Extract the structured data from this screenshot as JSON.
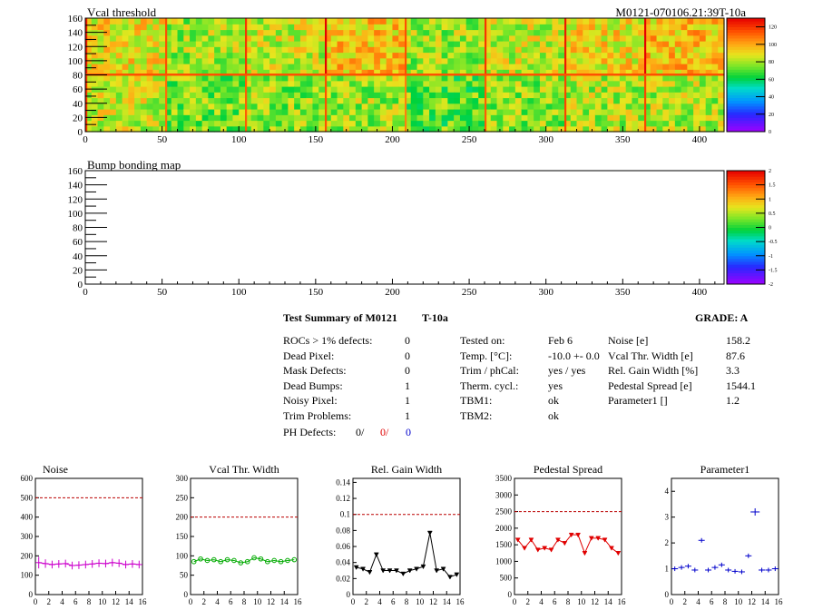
{
  "header": {
    "map_title": "Vcal threshold",
    "module_label": "M0121-070106.21:39T-10a",
    "bump_title": "Bump bonding map"
  },
  "axes": {
    "map_x_ticks": [
      "0",
      "50",
      "100",
      "150",
      "200",
      "250",
      "300",
      "350",
      "400"
    ],
    "map_y_ticks": [
      "0",
      "20",
      "40",
      "60",
      "80",
      "100",
      "120",
      "140",
      "160"
    ],
    "vcal_palette_ticks": [
      "0",
      "20",
      "40",
      "60",
      "80",
      "100",
      "120"
    ],
    "bump_palette_ticks": [
      "-2",
      "-1.5",
      "-1",
      "-0.5",
      "0",
      "0.5",
      "1",
      "1.5",
      "2"
    ],
    "small_x_ticks": [
      "0",
      "2",
      "4",
      "6",
      "8",
      "10",
      "12",
      "14",
      "16"
    ]
  },
  "summary": {
    "title": "Test Summary of M0121",
    "temp_tag": "T-10a",
    "grade": "GRADE:  A",
    "defects": [
      {
        "label": "ROCs > 1% defects:",
        "value": "0"
      },
      {
        "label": "Dead Pixel:",
        "value": "0"
      },
      {
        "label": "Mask Defects:",
        "value": "0"
      },
      {
        "label": "Dead Bumps:",
        "value": "1"
      },
      {
        "label": "Noisy Pixel:",
        "value": "1"
      },
      {
        "label": "Trim Problems:",
        "value": "1"
      }
    ],
    "ph_defects": {
      "label": "PH Defects:",
      "v1": "0/",
      "v2": "0/",
      "v3": "0"
    },
    "conditions": [
      {
        "label": "Tested on:",
        "value": "Feb 6"
      },
      {
        "label": "Temp. [°C]:",
        "value": "-10.0 +- 0.0"
      },
      {
        "label": "Trim / phCal:",
        "value": "yes / yes"
      },
      {
        "label": "Therm. cycl.:",
        "value": "yes"
      },
      {
        "label": "TBM1:",
        "value": "ok"
      },
      {
        "label": "TBM2:",
        "value": "ok"
      }
    ],
    "results": [
      {
        "label": "Noise [e]",
        "value": "158.2"
      },
      {
        "label": "Vcal Thr. Width [e]",
        "value": "87.6"
      },
      {
        "label": "Rel. Gain Width [%]",
        "value": "3.3"
      },
      {
        "label": "Pedestal Spread [e]",
        "value": "1544.1"
      },
      {
        "label": "Parameter1 []",
        "value": "1.2"
      }
    ]
  },
  "colors": {
    "noise": "#cc00cc",
    "vcal_width": "#00aa00",
    "gain": "#000000",
    "pedestal": "#e00000",
    "param1": "#0000cc",
    "limit_line": "#bb0000"
  },
  "chart_data": [
    {
      "type": "heatmap",
      "title": "Vcal threshold",
      "xlim": [
        0,
        416
      ],
      "ylim": [
        0,
        160
      ],
      "zlim": [
        0,
        130
      ],
      "roc_mean_values": [
        [
          85,
          75,
          78,
          80,
          72,
          78,
          82,
          82
        ],
        [
          90,
          80,
          85,
          95,
          80,
          85,
          90,
          95
        ]
      ]
    },
    {
      "type": "heatmap",
      "title": "Bump bonding map",
      "xlim": [
        0,
        416
      ],
      "ylim": [
        0,
        160
      ],
      "zlim": [
        -2,
        2
      ]
    },
    {
      "type": "line",
      "title": "Noise",
      "x": [
        0,
        1,
        2,
        3,
        4,
        5,
        6,
        7,
        8,
        9,
        10,
        11,
        12,
        13,
        14,
        15
      ],
      "values": [
        165,
        160,
        155,
        158,
        160,
        150,
        152,
        155,
        158,
        162,
        160,
        165,
        162,
        155,
        158,
        155
      ],
      "errors": [
        30,
        22,
        20,
        20,
        20,
        20,
        20,
        20,
        20,
        20,
        20,
        20,
        20,
        20,
        20,
        20
      ],
      "xlim": [
        0,
        16
      ],
      "ylim": [
        0,
        600
      ],
      "y_ticks": [
        "0",
        "100",
        "200",
        "300",
        "400",
        "500",
        "600"
      ],
      "limit": 500
    },
    {
      "type": "line",
      "title": "Vcal Thr. Width",
      "x": [
        0,
        1,
        2,
        3,
        4,
        5,
        6,
        7,
        8,
        9,
        10,
        11,
        12,
        13,
        14,
        15
      ],
      "values": [
        85,
        92,
        88,
        90,
        85,
        90,
        88,
        82,
        85,
        95,
        92,
        85,
        88,
        85,
        88,
        90
      ],
      "xlim": [
        0,
        16
      ],
      "ylim": [
        0,
        300
      ],
      "y_ticks": [
        "0",
        "50",
        "100",
        "150",
        "200",
        "250",
        "300"
      ],
      "limit": 200
    },
    {
      "type": "line",
      "title": "Rel. Gain Width",
      "x": [
        0,
        1,
        2,
        3,
        4,
        5,
        6,
        7,
        8,
        9,
        10,
        11,
        12,
        13,
        14,
        15
      ],
      "values": [
        0.034,
        0.032,
        0.028,
        0.05,
        0.03,
        0.03,
        0.03,
        0.026,
        0.03,
        0.032,
        0.035,
        0.077,
        0.03,
        0.032,
        0.022,
        0.025
      ],
      "xlim": [
        0,
        16
      ],
      "ylim": [
        0,
        0.145
      ],
      "y_ticks": [
        "0",
        "0.02",
        "0.04",
        "0.06",
        "0.08",
        "0.1",
        "0.12",
        "0.14"
      ],
      "limit": 0.1
    },
    {
      "type": "line",
      "title": "Pedestal Spread",
      "x": [
        0,
        1,
        2,
        3,
        4,
        5,
        6,
        7,
        8,
        9,
        10,
        11,
        12,
        13,
        14,
        15
      ],
      "values": [
        1650,
        1400,
        1650,
        1350,
        1400,
        1350,
        1650,
        1550,
        1800,
        1800,
        1250,
        1700,
        1700,
        1650,
        1400,
        1250
      ],
      "xlim": [
        0,
        16
      ],
      "ylim": [
        0,
        3500
      ],
      "y_ticks": [
        "0",
        "500",
        "1000",
        "1500",
        "2000",
        "2500",
        "3000",
        "3500"
      ],
      "limit": 2500
    },
    {
      "type": "scatter",
      "title": "Parameter1",
      "x": [
        0,
        1,
        2,
        3,
        4,
        5,
        6,
        7,
        8,
        9,
        10,
        11,
        12,
        13,
        14,
        15
      ],
      "values": [
        1.0,
        1.05,
        1.1,
        0.95,
        2.1,
        0.95,
        1.05,
        1.15,
        0.95,
        0.9,
        0.88,
        1.5,
        3.2,
        0.95,
        0.95,
        1.0
      ],
      "xlim": [
        0,
        16
      ],
      "ylim": [
        0,
        4.5
      ],
      "y_ticks": [
        "0",
        "1",
        "2",
        "3",
        "4"
      ]
    }
  ]
}
